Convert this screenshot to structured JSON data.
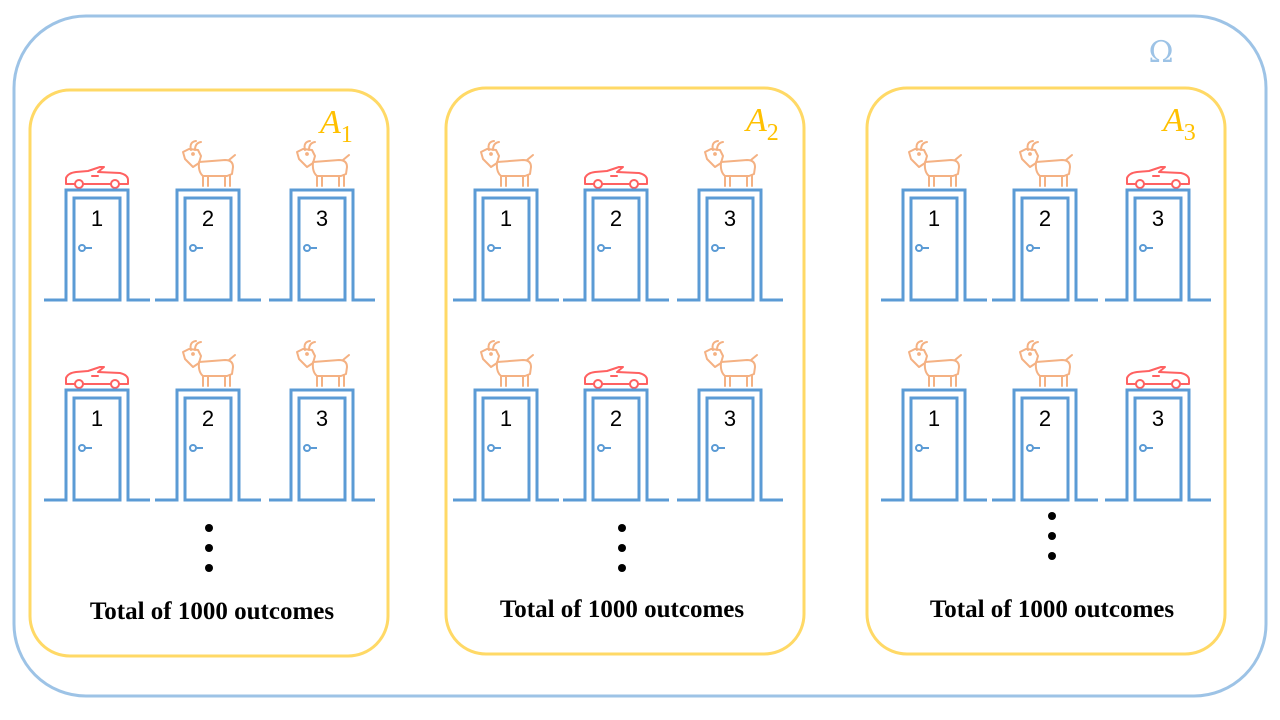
{
  "omega_label": "Ω",
  "colors": {
    "omega_border": "#9dc3e6",
    "set_border": "#ffd966",
    "set_label": "#ffc000",
    "door": "#5b9bd5",
    "car": "#ff6161",
    "goat": "#f4b183",
    "text": "#000000"
  },
  "events": [
    {
      "label": "A",
      "subscript": "1",
      "rows": [
        [
          "car",
          "goat",
          "goat"
        ],
        [
          "car",
          "goat",
          "goat"
        ]
      ],
      "door_numbers": [
        "1",
        "2",
        "3"
      ],
      "total_text": "Total of 1000 outcomes"
    },
    {
      "label": "A",
      "subscript": "2",
      "rows": [
        [
          "goat",
          "car",
          "goat"
        ],
        [
          "goat",
          "car",
          "goat"
        ]
      ],
      "door_numbers": [
        "1",
        "2",
        "3"
      ],
      "total_text": "Total of 1000 outcomes"
    },
    {
      "label": "A",
      "subscript": "3",
      "rows": [
        [
          "goat",
          "goat",
          "car"
        ],
        [
          "goat",
          "goat",
          "car"
        ]
      ],
      "door_numbers": [
        "1",
        "2",
        "3"
      ],
      "total_text": "Total of 1000 outcomes"
    }
  ]
}
